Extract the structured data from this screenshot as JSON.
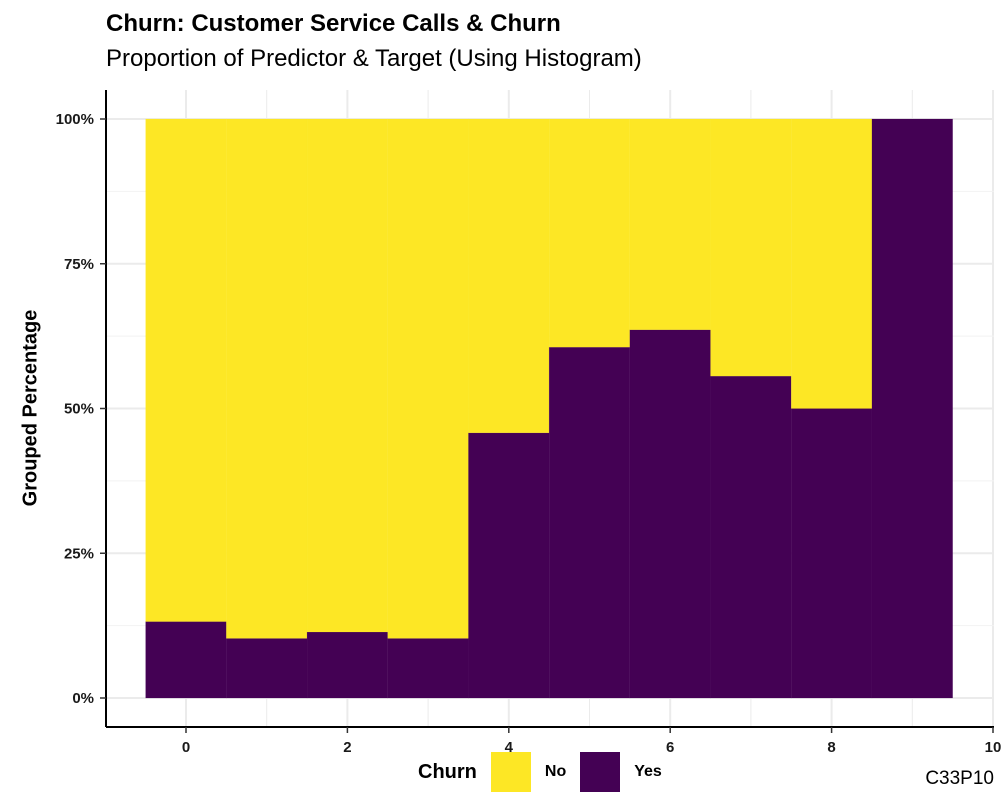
{
  "title": "Churn: Customer Service Calls & Churn",
  "subtitle": "Proportion of Predictor & Target (Using Histogram)",
  "caption": "C33P10",
  "chart_data": {
    "type": "bar",
    "stacked": "fill",
    "ylabel": "Grouped Percentage",
    "xlabel": "",
    "x": [
      0,
      1,
      2,
      3,
      4,
      5,
      6,
      7,
      8,
      9
    ],
    "bin_width": 1,
    "xlim": [
      -1,
      10
    ],
    "ylim": [
      0,
      1
    ],
    "x_ticks": [
      0,
      2,
      4,
      6,
      8,
      10
    ],
    "y_ticks": [
      0,
      0.25,
      0.5,
      0.75,
      1
    ],
    "y_tick_labels": [
      "0%",
      "25%",
      "50%",
      "75%",
      "100%"
    ],
    "series": [
      {
        "name": "Yes",
        "color": "#440154",
        "values": [
          0.132,
          0.103,
          0.114,
          0.103,
          0.458,
          0.606,
          0.636,
          0.556,
          0.5,
          1.0
        ]
      },
      {
        "name": "No",
        "color": "#FDE725",
        "values": [
          0.868,
          0.897,
          0.886,
          0.897,
          0.542,
          0.394,
          0.364,
          0.444,
          0.5,
          0.0
        ]
      }
    ],
    "legend_title": "Churn",
    "legend_entries": [
      {
        "label": "No",
        "color": "#FDE725"
      },
      {
        "label": "Yes",
        "color": "#440154"
      }
    ],
    "legend_position": "bottom",
    "grid": true
  }
}
